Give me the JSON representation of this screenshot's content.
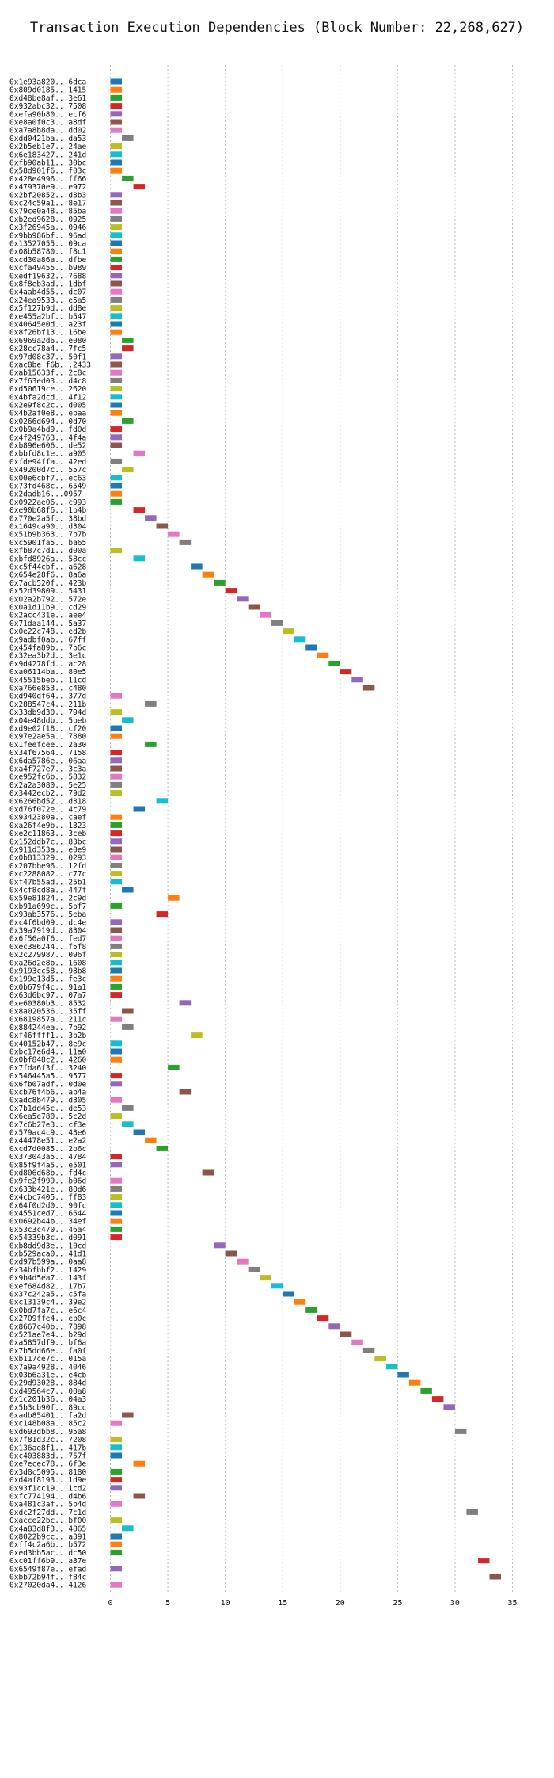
{
  "chart_data": {
    "type": "bar",
    "orientation": "horizontal",
    "title": "Transaction Execution Dependencies (Block Number: 22,268,627)",
    "xlabel": "",
    "ylabel": "",
    "xlim": [
      -3,
      36
    ],
    "xticks": [
      0,
      5,
      10,
      15,
      20,
      25,
      30,
      35
    ],
    "grid": true,
    "palette": [
      "#1f77b4",
      "#ff7f0e",
      "#2ca02c",
      "#d62728",
      "#9467bd",
      "#8c564b",
      "#e377c2",
      "#7f7f7f",
      "#bcbd22",
      "#17becf"
    ],
    "bar_length": 1,
    "rows": [
      {
        "tx": "0x1e93a820...6dca",
        "start": 0
      },
      {
        "tx": "0x809d0185...1415",
        "start": 0
      },
      {
        "tx": "0xd48be8af...3e61",
        "start": 0
      },
      {
        "tx": "0x932abc32...7508",
        "start": 0
      },
      {
        "tx": "0xefa90b80...ecf6",
        "start": 0
      },
      {
        "tx": "0xe8a0f0c3...a8df",
        "start": 0
      },
      {
        "tx": "0xa7a8b8da...dd02",
        "start": 0
      },
      {
        "tx": "0xdd0421ba...da53",
        "start": 1
      },
      {
        "tx": "0x2b5eb1e7...24ae",
        "start": 0
      },
      {
        "tx": "0x6e183427...241d",
        "start": 0
      },
      {
        "tx": "0xfb90ab11...30bc",
        "start": 0
      },
      {
        "tx": "0x58d901f6...f03c",
        "start": 0
      },
      {
        "tx": "0x428e4996...ff66",
        "start": 1
      },
      {
        "tx": "0x479370e9...e972",
        "start": 2
      },
      {
        "tx": "0x2bf20852...d8b3",
        "start": 0
      },
      {
        "tx": "0xc24c59a1...8e17",
        "start": 0
      },
      {
        "tx": "0x79ce0a48...85ba",
        "start": 0
      },
      {
        "tx": "0xb2ed9628...0925",
        "start": 0
      },
      {
        "tx": "0x3f26945a...0946",
        "start": 0
      },
      {
        "tx": "0x9bb986bf...96ad",
        "start": 0
      },
      {
        "tx": "0x13527055...09ca",
        "start": 0
      },
      {
        "tx": "0x08b58780...f8c1",
        "start": 0
      },
      {
        "tx": "0xcd30a86a...dfbe",
        "start": 0
      },
      {
        "tx": "0xcfa49455...b989",
        "start": 0
      },
      {
        "tx": "0xedf19632...7688",
        "start": 0
      },
      {
        "tx": "0x8f8eb3ad...1dbf",
        "start": 0
      },
      {
        "tx": "0x4aab4d55...dc07",
        "start": 0
      },
      {
        "tx": "0x24ea9533...e5a5",
        "start": 0
      },
      {
        "tx": "0x5f127b9d...dd8e",
        "start": 0
      },
      {
        "tx": "0xe455a2bf...b547",
        "start": 0
      },
      {
        "tx": "0x40645e0d...a23f",
        "start": 0
      },
      {
        "tx": "0x8f26bf13...16be",
        "start": 0
      },
      {
        "tx": "0x6969a2d6...e080",
        "start": 1
      },
      {
        "tx": "0x28cc78a4...7fc5",
        "start": 1
      },
      {
        "tx": "0x97d08c37...50f1",
        "start": 0
      },
      {
        "tx": "0xac8be f6b...2433",
        "start": 0
      },
      {
        "tx": "0xab15633f...2c8c",
        "start": 0
      },
      {
        "tx": "0x7f63ed03...d4c8",
        "start": 0
      },
      {
        "tx": "0xd50619ce...2620",
        "start": 0
      },
      {
        "tx": "0x4bfa2dcd...4f12",
        "start": 0
      },
      {
        "tx": "0x2e9f8c2c...d005",
        "start": 0
      },
      {
        "tx": "0x4b2af0e8...ebaa",
        "start": 0
      },
      {
        "tx": "0x0266d694...0d70",
        "start": 1
      },
      {
        "tx": "0x0b9a4bd9...fd0d",
        "start": 0
      },
      {
        "tx": "0x4f249763...4f4a",
        "start": 0
      },
      {
        "tx": "0xb896e606...de52",
        "start": 0
      },
      {
        "tx": "0xbbfd8c1e...a905",
        "start": 2
      },
      {
        "tx": "0xfde94ffa...42ed",
        "start": 0
      },
      {
        "tx": "0x49200d7c...557c",
        "start": 1
      },
      {
        "tx": "0x00e6cbf7...ec63",
        "start": 0
      },
      {
        "tx": "0x73fd468c...6549",
        "start": 0
      },
      {
        "tx": "0x2dadb16...0957",
        "start": 0
      },
      {
        "tx": "0x0922ae06...c993",
        "start": 0
      },
      {
        "tx": "0xe90b68f6...1b4b",
        "start": 2
      },
      {
        "tx": "0x770e2a5f...38bd",
        "start": 3
      },
      {
        "tx": "0x1649ca90...d304",
        "start": 4
      },
      {
        "tx": "0x51b9b363...7b7b",
        "start": 5
      },
      {
        "tx": "0xc5901fa5...ba65",
        "start": 6
      },
      {
        "tx": "0xfb87c7d1...d00a",
        "start": 0
      },
      {
        "tx": "0xbfd8926a...58cc",
        "start": 2
      },
      {
        "tx": "0xc5f44cbf...a628",
        "start": 7
      },
      {
        "tx": "0x654e28f6...8a6a",
        "start": 8
      },
      {
        "tx": "0x7acb520f...423b",
        "start": 9
      },
      {
        "tx": "0x52d39809...5431",
        "start": 10
      },
      {
        "tx": "0x02a2b792...572e",
        "start": 11
      },
      {
        "tx": "0x0a1d11b9...cd29",
        "start": 12
      },
      {
        "tx": "0x2acc431e...aee4",
        "start": 13
      },
      {
        "tx": "0x71daa144...5a37",
        "start": 14
      },
      {
        "tx": "0x0e22c748...ed2b",
        "start": 15
      },
      {
        "tx": "0x9adbf0ab...67ff",
        "start": 16
      },
      {
        "tx": "0x454fa89b...7b6c",
        "start": 17
      },
      {
        "tx": "0x32ea3b2d...3e1c",
        "start": 18
      },
      {
        "tx": "0x9d4278fd...ac28",
        "start": 19
      },
      {
        "tx": "0xa06114ba...80e5",
        "start": 20
      },
      {
        "tx": "0x45515beb...11cd",
        "start": 21
      },
      {
        "tx": "0xa766e853...c480",
        "start": 22
      },
      {
        "tx": "0xd940df64...377d",
        "start": 0
      },
      {
        "tx": "0x288547c4...211b",
        "start": 3
      },
      {
        "tx": "0x33db9d30...794d",
        "start": 0
      },
      {
        "tx": "0x04e48ddb...5beb",
        "start": 1
      },
      {
        "tx": "0xd9e02f18...cf20",
        "start": 0
      },
      {
        "tx": "0x97e2ae5a...7880",
        "start": 0
      },
      {
        "tx": "0x1feefcee...2a30",
        "start": 3
      },
      {
        "tx": "0x34f67564...7158",
        "start": 0
      },
      {
        "tx": "0x6da5786e...06aa",
        "start": 0
      },
      {
        "tx": "0xa4f727e7...3c3a",
        "start": 0
      },
      {
        "tx": "0xe952fc6b...5832",
        "start": 0
      },
      {
        "tx": "0x2a2a3080...5e25",
        "start": 0
      },
      {
        "tx": "0x3442ecb2...79d2",
        "start": 0
      },
      {
        "tx": "0x6266bd52...d318",
        "start": 4
      },
      {
        "tx": "0xd76f072e...4c79",
        "start": 2
      },
      {
        "tx": "0x9342380a...caef",
        "start": 0
      },
      {
        "tx": "0xa26f4e9b...1323",
        "start": 0
      },
      {
        "tx": "0xe2c11863...3ceb",
        "start": 0
      },
      {
        "tx": "0x152ddb7c...83bc",
        "start": 0
      },
      {
        "tx": "0x911d353a...e0e9",
        "start": 0
      },
      {
        "tx": "0x0b813329...0293",
        "start": 0
      },
      {
        "tx": "0x207bbe96...12fd",
        "start": 0
      },
      {
        "tx": "0xc2288082...c77c",
        "start": 0
      },
      {
        "tx": "0xf47b55ad...25b1",
        "start": 0
      },
      {
        "tx": "0x4cf8cd8a...447f",
        "start": 1
      },
      {
        "tx": "0x59e81824...2c9d",
        "start": 5
      },
      {
        "tx": "0xb91a699c...5bf7",
        "start": 0
      },
      {
        "tx": "0x93ab3576...5eba",
        "start": 4
      },
      {
        "tx": "0xc4f6bd09...dc4e",
        "start": 0
      },
      {
        "tx": "0x39a7919d...8304",
        "start": 0
      },
      {
        "tx": "0x6f56a0f6...fed7",
        "start": 0
      },
      {
        "tx": "0xec386244...f5f8",
        "start": 0
      },
      {
        "tx": "0x2c279987...096f",
        "start": 0
      },
      {
        "tx": "0xa26d2e8b...1608",
        "start": 0
      },
      {
        "tx": "0x9193cc58...98b8",
        "start": 0
      },
      {
        "tx": "0x199e13d5...fe3c",
        "start": 0
      },
      {
        "tx": "0x0b679f4c...91a1",
        "start": 0
      },
      {
        "tx": "0x63d6bc97...07a7",
        "start": 0
      },
      {
        "tx": "0xe60380b3...8532",
        "start": 6
      },
      {
        "tx": "0x8a020536...35ff",
        "start": 1
      },
      {
        "tx": "0x6819857a...211c",
        "start": 0
      },
      {
        "tx": "0x884244ea...7b92",
        "start": 1
      },
      {
        "tx": "0xf46ffff1...3b2b",
        "start": 7
      },
      {
        "tx": "0x40152b47...8e9c",
        "start": 0
      },
      {
        "tx": "0xbc17e6d4...11a0",
        "start": 0
      },
      {
        "tx": "0x0bf848c2...4260",
        "start": 0
      },
      {
        "tx": "0x7fda6f3f...3240",
        "start": 5
      },
      {
        "tx": "0x546445a5...9577",
        "start": 0
      },
      {
        "tx": "0x6fb07adf...0d0e",
        "start": 0
      },
      {
        "tx": "0xcb76f4b6...ab4a",
        "start": 6
      },
      {
        "tx": "0xadc8b479...d305",
        "start": 0
      },
      {
        "tx": "0x7b1dd45c...de53",
        "start": 1
      },
      {
        "tx": "0x6ea5e780...5c2d",
        "start": 0
      },
      {
        "tx": "0x7c6b27e3...cf3e",
        "start": 1
      },
      {
        "tx": "0x579ac4c9...43e6",
        "start": 2
      },
      {
        "tx": "0x44478e51...e2a2",
        "start": 3
      },
      {
        "tx": "0xcd7d0085...2b6c",
        "start": 4
      },
      {
        "tx": "0x373043a5...4784",
        "start": 0
      },
      {
        "tx": "0x85f9f4a5...e501",
        "start": 0
      },
      {
        "tx": "0xd806d68b...fd4c",
        "start": 8
      },
      {
        "tx": "0x9fe2f999...b06d",
        "start": 0
      },
      {
        "tx": "0x633b421e...80d6",
        "start": 0
      },
      {
        "tx": "0x4cbc7405...ff83",
        "start": 0
      },
      {
        "tx": "0x64f0d2d0...90fc",
        "start": 0
      },
      {
        "tx": "0x4551ced7...6544",
        "start": 0
      },
      {
        "tx": "0x0692b44b...34ef",
        "start": 0
      },
      {
        "tx": "0x53c3c470...46a4",
        "start": 0
      },
      {
        "tx": "0x54339b3c...d091",
        "start": 0
      },
      {
        "tx": "0xb8dd9d3e...10cd",
        "start": 9
      },
      {
        "tx": "0xb529aca0...41d1",
        "start": 10
      },
      {
        "tx": "0xd97b599a...0aa8",
        "start": 11
      },
      {
        "tx": "0x34bfbbf2...1429",
        "start": 12
      },
      {
        "tx": "0x9b4d5ea7...143f",
        "start": 13
      },
      {
        "tx": "0xef684d82...17b7",
        "start": 14
      },
      {
        "tx": "0x37c242a5...c5fa",
        "start": 15
      },
      {
        "tx": "0xc13139c4...39e2",
        "start": 16
      },
      {
        "tx": "0x0bd7fa7c...e6c4",
        "start": 17
      },
      {
        "tx": "0x2709ffe4...eb0c",
        "start": 18
      },
      {
        "tx": "0x8667c40b...7898",
        "start": 19
      },
      {
        "tx": "0x521ae7e4...b29d",
        "start": 20
      },
      {
        "tx": "0xa5857df9...bf6a",
        "start": 21
      },
      {
        "tx": "0x7b5dd66e...fa0f",
        "start": 22
      },
      {
        "tx": "0xb117ce7c...015a",
        "start": 23
      },
      {
        "tx": "0x7a9a4928...4046",
        "start": 24
      },
      {
        "tx": "0x03b6a31e...e4cb",
        "start": 25
      },
      {
        "tx": "0x29d93028...884d",
        "start": 26
      },
      {
        "tx": "0xd49564c7...00a8",
        "start": 27
      },
      {
        "tx": "0x1c201b36...04a3",
        "start": 28
      },
      {
        "tx": "0x5b3cb90f...89cc",
        "start": 29
      },
      {
        "tx": "0xadb85401...fa2d",
        "start": 1
      },
      {
        "tx": "0xc148b08a...85c2",
        "start": 0
      },
      {
        "tx": "0xd693dbb8...95a8",
        "start": 30
      },
      {
        "tx": "0x7f81d32c...7208",
        "start": 0
      },
      {
        "tx": "0x136ae8f1...417b",
        "start": 0
      },
      {
        "tx": "0xc403883d...757f",
        "start": 0
      },
      {
        "tx": "0xe7ecec78...6f3e",
        "start": 2
      },
      {
        "tx": "0x3d8c5095...8180",
        "start": 0
      },
      {
        "tx": "0xd4af8193...1d9e",
        "start": 0
      },
      {
        "tx": "0x93f1cc19...1cd2",
        "start": 0
      },
      {
        "tx": "0xfc774194...d4b6",
        "start": 2
      },
      {
        "tx": "0xa481c3af...5b4d",
        "start": 0
      },
      {
        "tx": "0xdc2f27dd...7c1d",
        "start": 31
      },
      {
        "tx": "0xacce22bc...bf00",
        "start": 0
      },
      {
        "tx": "0x4a83d8f3...4865",
        "start": 1
      },
      {
        "tx": "0x8022b9cc...a391",
        "start": 0
      },
      {
        "tx": "0xff4c2a6b...b572",
        "start": 0
      },
      {
        "tx": "0xed3bb5ac...dc50",
        "start": 0
      },
      {
        "tx": "0xc01ff6b9...a37e",
        "start": 32
      },
      {
        "tx": "0x6549f87e...efad",
        "start": 0
      },
      {
        "tx": "0xbb72b94f...f84c",
        "start": 33
      },
      {
        "tx": "0x27020da4...4126",
        "start": 0
      }
    ]
  }
}
